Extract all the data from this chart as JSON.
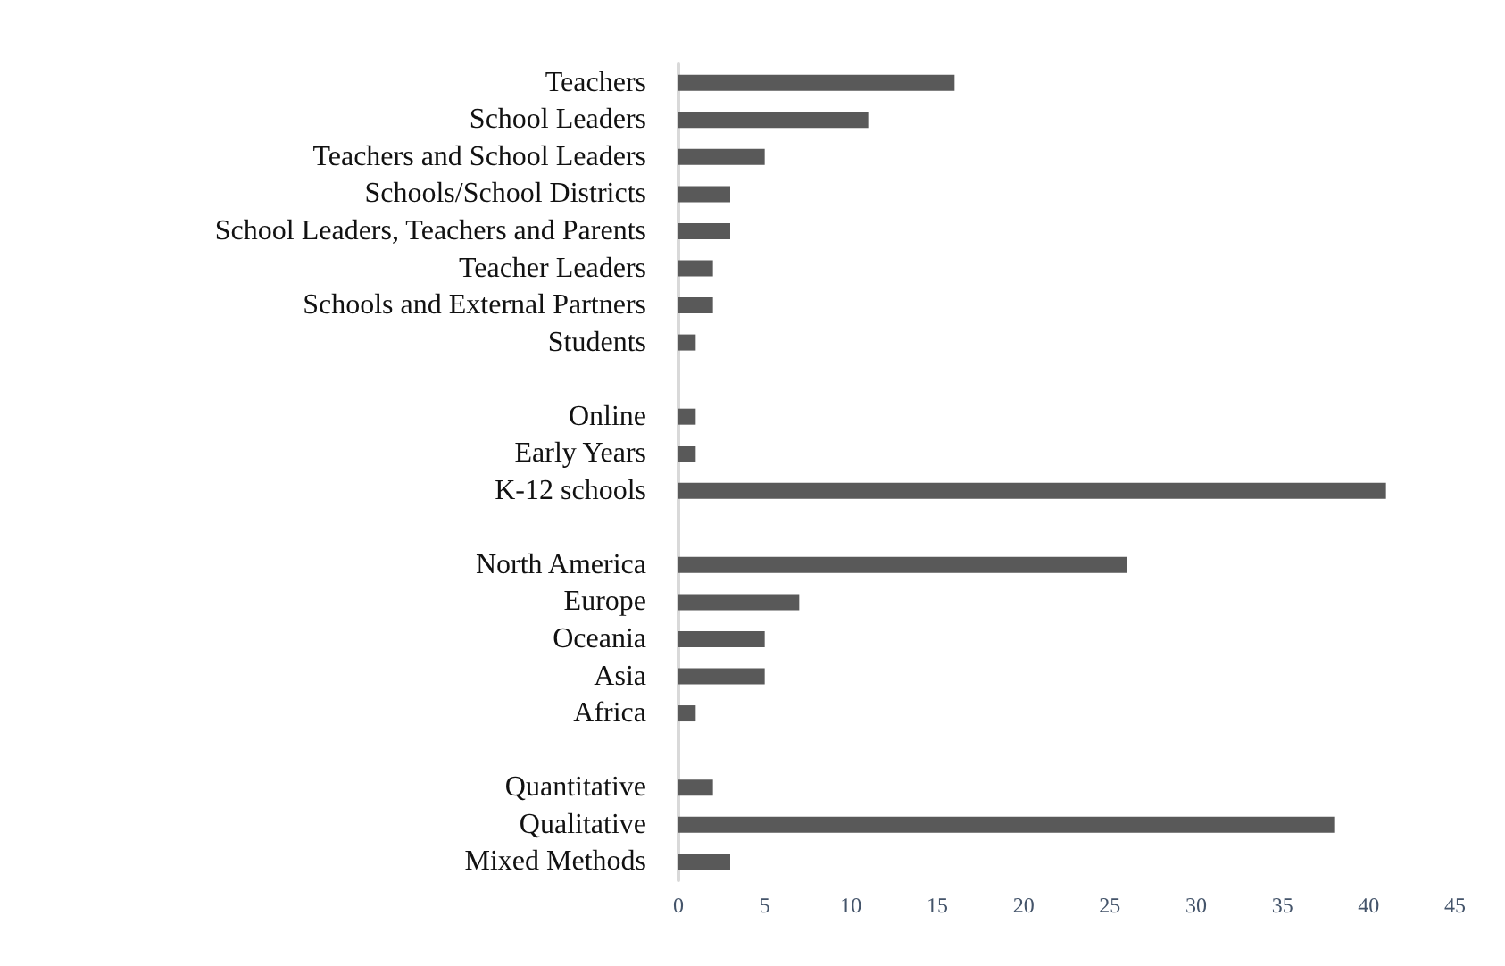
{
  "chart_data": {
    "type": "bar",
    "orientation": "horizontal",
    "categories": [
      "Teachers",
      "School Leaders",
      "Teachers and School Leaders",
      "Schools/School Districts",
      "School Leaders, Teachers and Parents",
      "Teacher Leaders",
      "Schools and External Partners",
      "Students",
      null,
      "Online",
      "Early Years",
      "K-12 schools",
      null,
      "North America",
      "Europe",
      "Oceania",
      "Asia",
      "Africa",
      null,
      "Quantitative",
      "Qualitative",
      "Mixed Methods"
    ],
    "values": [
      16,
      11,
      5,
      3,
      3,
      2,
      2,
      1,
      null,
      1,
      1,
      41,
      null,
      26,
      7,
      5,
      5,
      1,
      null,
      2,
      38,
      3
    ],
    "color": "#595959",
    "xlim": [
      0,
      45
    ],
    "xticks": [
      0,
      5,
      10,
      15,
      20,
      25,
      30,
      35,
      40,
      45
    ],
    "grid": false
  }
}
